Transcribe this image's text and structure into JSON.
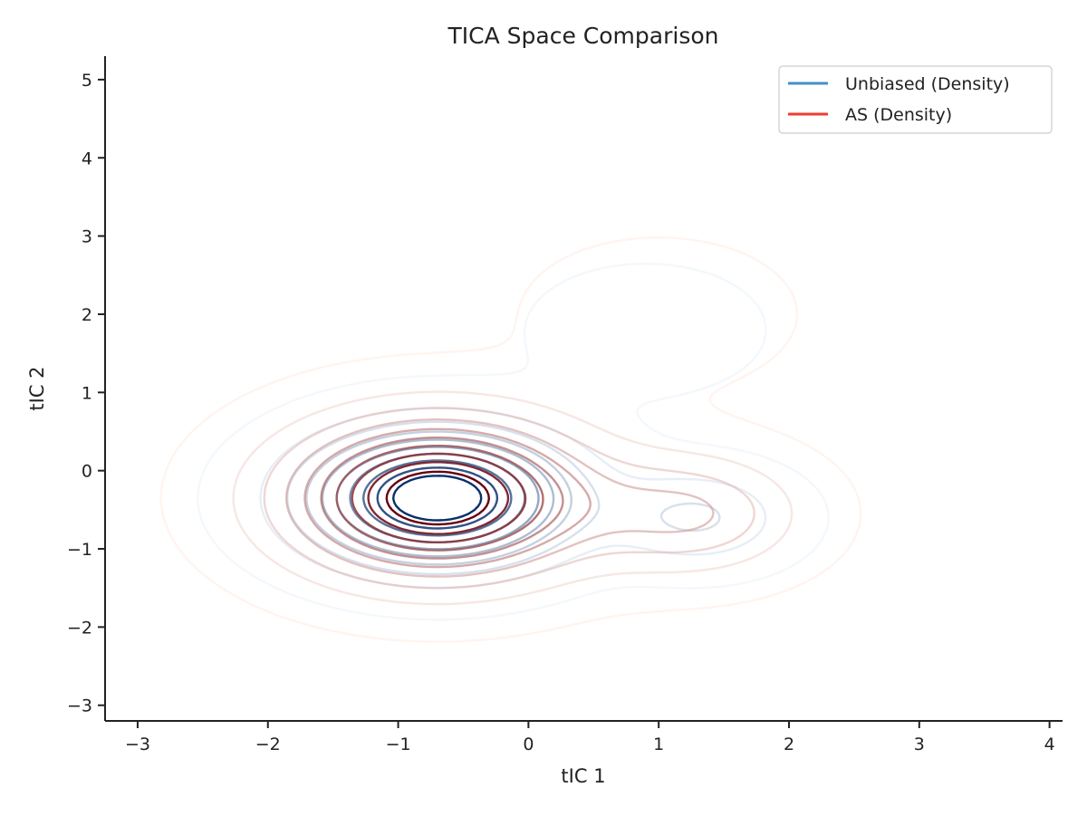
{
  "chart_data": {
    "type": "contour",
    "title": "TICA Space Comparison",
    "xlabel": "tIC 1",
    "ylabel": "tIC 2",
    "xlim": [
      -3.25,
      4.1
    ],
    "ylim": [
      -3.2,
      5.3
    ],
    "xticks": [
      -3,
      -2,
      -1,
      0,
      1,
      2,
      3,
      4
    ],
    "yticks": [
      -3,
      -2,
      -1,
      0,
      1,
      2,
      3,
      4,
      5
    ],
    "xtick_labels": [
      "−3",
      "−2",
      "−1",
      "0",
      "1",
      "2",
      "3",
      "4"
    ],
    "ytick_labels": [
      "−3",
      "−2",
      "−1",
      "0",
      "1",
      "2",
      "3",
      "4",
      "5"
    ],
    "grid": false,
    "legend_position": "top-right",
    "contour_levels": 10,
    "series": [
      {
        "name": "Unbiased (Density)",
        "colormap": "Blues",
        "legend_color": "#4292c6",
        "light_color": "#deebf7",
        "dark_color": "#08306b",
        "modes": [
          {
            "center": [
              -0.7,
              -0.35
            ],
            "sigma": [
              0.65,
              0.55
            ],
            "weight": 1.0
          },
          {
            "center": [
              1.3,
              -0.6
            ],
            "sigma": [
              0.45,
              0.4
            ],
            "weight": 0.22
          },
          {
            "center": [
              0.9,
              1.8
            ],
            "sigma": [
              0.6,
              0.55
            ],
            "weight": 0.06
          }
        ]
      },
      {
        "name": "AS (Density)",
        "colormap": "Reds",
        "legend_color": "#ef3b2c",
        "light_color": "#fee0d2",
        "dark_color": "#67000d",
        "modes": [
          {
            "center": [
              -0.7,
              -0.35
            ],
            "sigma": [
              0.75,
              0.65
            ],
            "weight": 1.0
          },
          {
            "center": [
              1.25,
              -0.55
            ],
            "sigma": [
              0.55,
              0.5
            ],
            "weight": 0.3
          },
          {
            "center": [
              1.0,
              2.0
            ],
            "sigma": [
              0.65,
              0.6
            ],
            "weight": 0.07
          }
        ]
      }
    ]
  }
}
